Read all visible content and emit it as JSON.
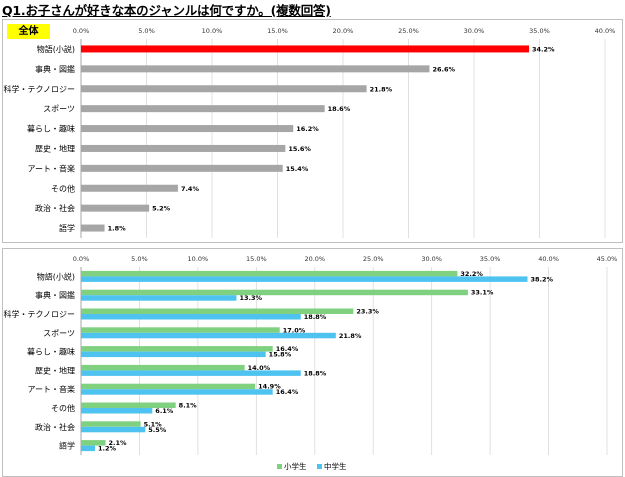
{
  "page_title": "Q1.お子さんが好きな本のジャンルは何ですか。(複数回答)",
  "colors": {
    "highlight_bar": "#ff0000",
    "overall_bar": "#a6a6a6",
    "elementary_bar": "#7fd17f",
    "junior_high_bar": "#4fc3f0",
    "badge_bg": "#ffff00"
  },
  "chart_data": [
    {
      "type": "bar",
      "orientation": "horizontal",
      "badge": "全体",
      "categories": [
        "物語(小説)",
        "事典・図鑑",
        "科学・テクノロジー",
        "スポーツ",
        "暮らし・趣味",
        "歴史・地理",
        "アート・音楽",
        "その他",
        "政治・社会",
        "語学"
      ],
      "values": [
        34.2,
        26.6,
        21.8,
        18.6,
        16.2,
        15.6,
        15.4,
        7.4,
        5.2,
        1.8
      ],
      "value_labels": [
        "34.2%",
        "26.6%",
        "21.8%",
        "18.6%",
        "16.2%",
        "15.6%",
        "15.4%",
        "7.4%",
        "5.2%",
        "1.8%"
      ],
      "xlim": [
        0,
        40
      ],
      "xticks": [
        "0.0%",
        "5.0%",
        "10.0%",
        "15.0%",
        "20.0%",
        "25.0%",
        "30.0%",
        "35.0%",
        "40.0%"
      ],
      "grid": true
    },
    {
      "type": "bar",
      "orientation": "horizontal",
      "categories": [
        "物語(小説)",
        "事典・図鑑",
        "科学・テクノロジー",
        "スポーツ",
        "暮らし・趣味",
        "歴史・地理",
        "アート・音楽",
        "その他",
        "政治・社会",
        "語学"
      ],
      "series": [
        {
          "name": "小学生",
          "values": [
            32.2,
            33.1,
            23.3,
            17.0,
            16.4,
            14.0,
            14.9,
            8.1,
            5.1,
            2.1
          ],
          "value_labels": [
            "32.2%",
            "33.1%",
            "23.3%",
            "17.0%",
            "16.4%",
            "14.0%",
            "14.9%",
            "8.1%",
            "5.1%",
            "2.1%"
          ]
        },
        {
          "name": "中学生",
          "values": [
            38.2,
            13.3,
            18.8,
            21.8,
            15.8,
            18.8,
            16.4,
            6.1,
            5.5,
            1.2
          ],
          "value_labels": [
            "38.2%",
            "13.3%",
            "18.8%",
            "21.8%",
            "15.8%",
            "18.8%",
            "16.4%",
            "6.1%",
            "5.5%",
            "1.2%"
          ]
        }
      ],
      "xlim": [
        0,
        45
      ],
      "xticks": [
        "0.0%",
        "5.0%",
        "10.0%",
        "15.0%",
        "20.0%",
        "25.0%",
        "30.0%",
        "35.0%",
        "40.0%",
        "45.0%"
      ],
      "grid": true,
      "legend_position": "bottom"
    }
  ]
}
